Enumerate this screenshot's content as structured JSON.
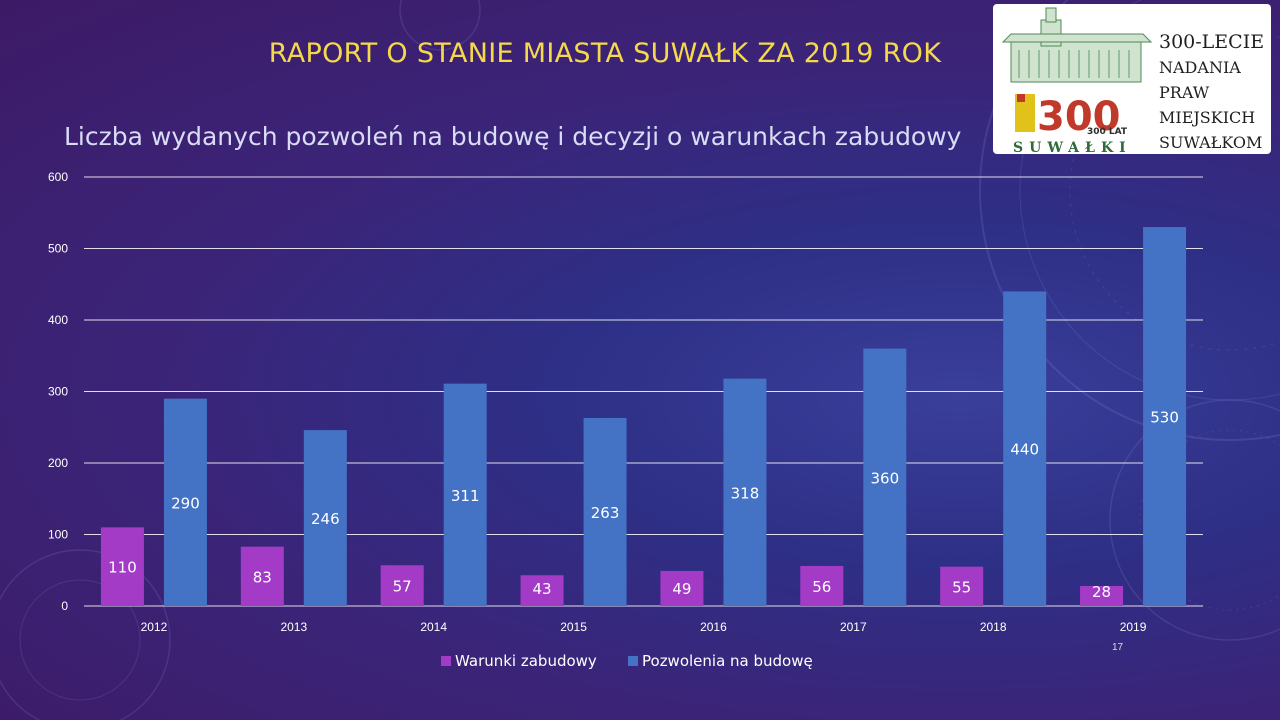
{
  "slide": {
    "title": "RAPORT O STANIE MIASTA SUWAŁK ZA 2019 ROK",
    "page_number": "17"
  },
  "logo": {
    "lines": [
      "300-LECIE",
      "NADANIA",
      "PRAW",
      "MIEJSKICH",
      "SUWAŁKOM"
    ],
    "emblem_text": "300 LAT",
    "city_text": "SUWAŁKI"
  },
  "colors": {
    "title": "#f5d94a",
    "series_1": "#a33bc6",
    "series_2": "#4472c4",
    "text": "#ffffff"
  },
  "chart_data": {
    "type": "bar",
    "title": "Liczba wydanych pozwoleń na budowę i decyzji  o warunkach zabudowy",
    "categories": [
      "2012",
      "2013",
      "2014",
      "2015",
      "2016",
      "2017",
      "2018",
      "2019"
    ],
    "series": [
      {
        "name": "Warunki zabudowy",
        "values": [
          110,
          83,
          57,
          43,
          49,
          56,
          55,
          28
        ]
      },
      {
        "name": "Pozwolenia na budowę",
        "values": [
          290,
          246,
          311,
          263,
          318,
          360,
          440,
          530
        ]
      }
    ],
    "yticks": [
      0,
      100,
      200,
      300,
      400,
      500,
      600
    ],
    "ylim": [
      0,
      600
    ],
    "grid": true,
    "legend": "bottom-center",
    "data_labels": true
  }
}
